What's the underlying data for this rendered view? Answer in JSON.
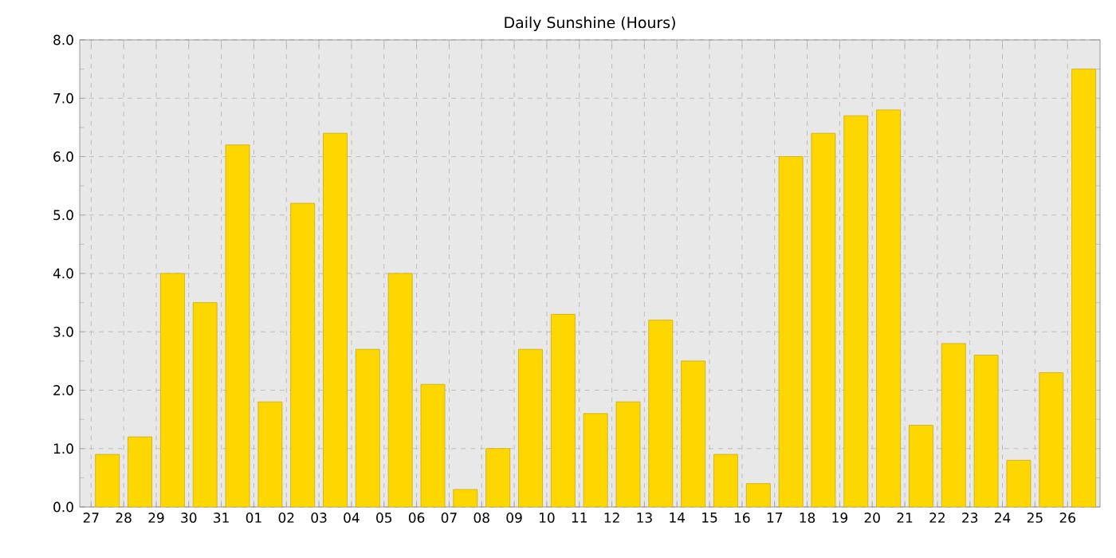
{
  "chart_data": {
    "type": "bar",
    "title": "Daily Sunshine (Hours)",
    "categories": [
      "27",
      "28",
      "29",
      "30",
      "31",
      "01",
      "02",
      "03",
      "04",
      "05",
      "06",
      "07",
      "08",
      "09",
      "10",
      "11",
      "12",
      "13",
      "14",
      "15",
      "16",
      "17",
      "18",
      "19",
      "20",
      "21",
      "22",
      "23",
      "24",
      "25",
      "26"
    ],
    "values": [
      0.9,
      1.2,
      4.0,
      3.5,
      6.2,
      1.8,
      5.2,
      6.4,
      2.7,
      4.0,
      2.1,
      0.3,
      1.0,
      2.7,
      3.3,
      1.6,
      1.8,
      3.2,
      2.5,
      0.9,
      0.4,
      6.0,
      6.4,
      6.7,
      6.8,
      1.4,
      2.8,
      2.6,
      0.8,
      2.3,
      7.5
    ],
    "color": "#ffd700",
    "ylim": [
      0,
      8
    ],
    "yticks": [
      {
        "value": 0,
        "label": "0.0"
      },
      {
        "value": 1,
        "label": "1.0"
      },
      {
        "value": 2,
        "label": "2.0"
      },
      {
        "value": 3,
        "label": "3.0"
      },
      {
        "value": 4,
        "label": "4.0"
      },
      {
        "value": 5,
        "label": "5.0"
      },
      {
        "value": 6,
        "label": "6.0"
      },
      {
        "value": 7,
        "label": "7.0"
      },
      {
        "value": 8,
        "label": "8.0"
      }
    ],
    "grid": true
  }
}
